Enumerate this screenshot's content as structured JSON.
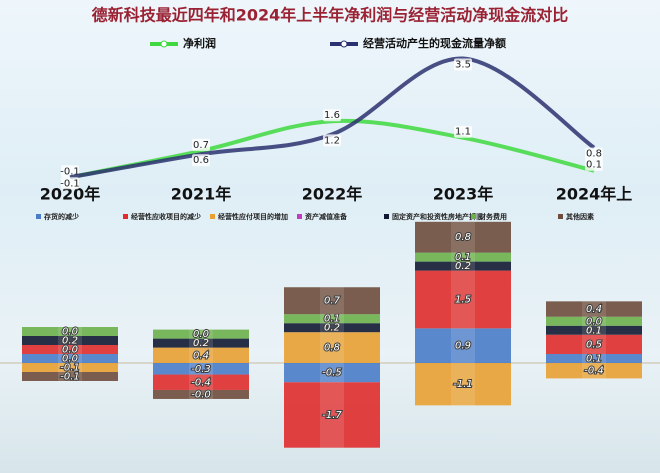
{
  "chart_data": [
    {
      "type": "line",
      "title": "德新科技最近四年和2024年上半年净利润与经营活动净现金流对比",
      "categories": [
        "2020年",
        "2021年",
        "2022年",
        "2023年",
        "2024年上"
      ],
      "series": [
        {
          "name": "净利润",
          "color": "#3fd93f",
          "values": [
            -0.1,
            0.7,
            1.6,
            1.1,
            0.1
          ]
        },
        {
          "name": "经营活动产生的现金流量净额",
          "color": "#2b3170",
          "values": [
            -0.1,
            0.6,
            1.2,
            3.5,
            0.8
          ]
        }
      ]
    },
    {
      "type": "stacked-bar",
      "series": [
        {
          "name": "存货的减少",
          "color": "#4a7cc8",
          "values": [
            0,
            -0.3,
            -0.5,
            0.9,
            0.1
          ],
          "value_labels": [
            "0.0",
            "-0.3",
            "-0.5",
            "0.9",
            "0.1"
          ]
        },
        {
          "name": "经营性应收项目的减少",
          "color": "#e02c2c",
          "values": [
            0,
            -0.4,
            -1.7,
            1.5,
            0.5
          ],
          "value_labels": [
            "0.0",
            "-0.4",
            "-1.7",
            "1.5",
            "0.5"
          ]
        },
        {
          "name": "经营性应付项目的增加",
          "color": "#e8a032",
          "values": [
            -0.1,
            0.4,
            0.8,
            -1.1,
            -0.4
          ],
          "value_labels": [
            "-0.1",
            "0.4",
            "0.8",
            "-1.1",
            "-0.4"
          ]
        },
        {
          "name": "资产减值准备",
          "color": "#c23cc2",
          "values": [
            null,
            null,
            null,
            null,
            null
          ]
        },
        {
          "name": "固定资产和投资性房地产折旧",
          "color": "#121a33",
          "values": [
            0.2,
            0.2,
            0.2,
            0.2,
            0.1
          ],
          "value_labels": [
            "0.2",
            "0.2",
            "0.2",
            "0.2",
            "0.1"
          ]
        },
        {
          "name": "财务费用",
          "color": "#6cb04a",
          "values": [
            0,
            0,
            0.1,
            0.1,
            0
          ],
          "value_labels": [
            "0.0",
            "0.0",
            "0.1",
            "0.1",
            "0.0"
          ]
        },
        {
          "name": "其他因素",
          "color": "#6e4c3c",
          "values": [
            -0.1,
            0,
            0.7,
            0.8,
            0.4
          ],
          "value_labels": [
            "-0.1",
            "-0.0",
            "0.7",
            "0.8",
            "0.4"
          ]
        }
      ]
    }
  ]
}
